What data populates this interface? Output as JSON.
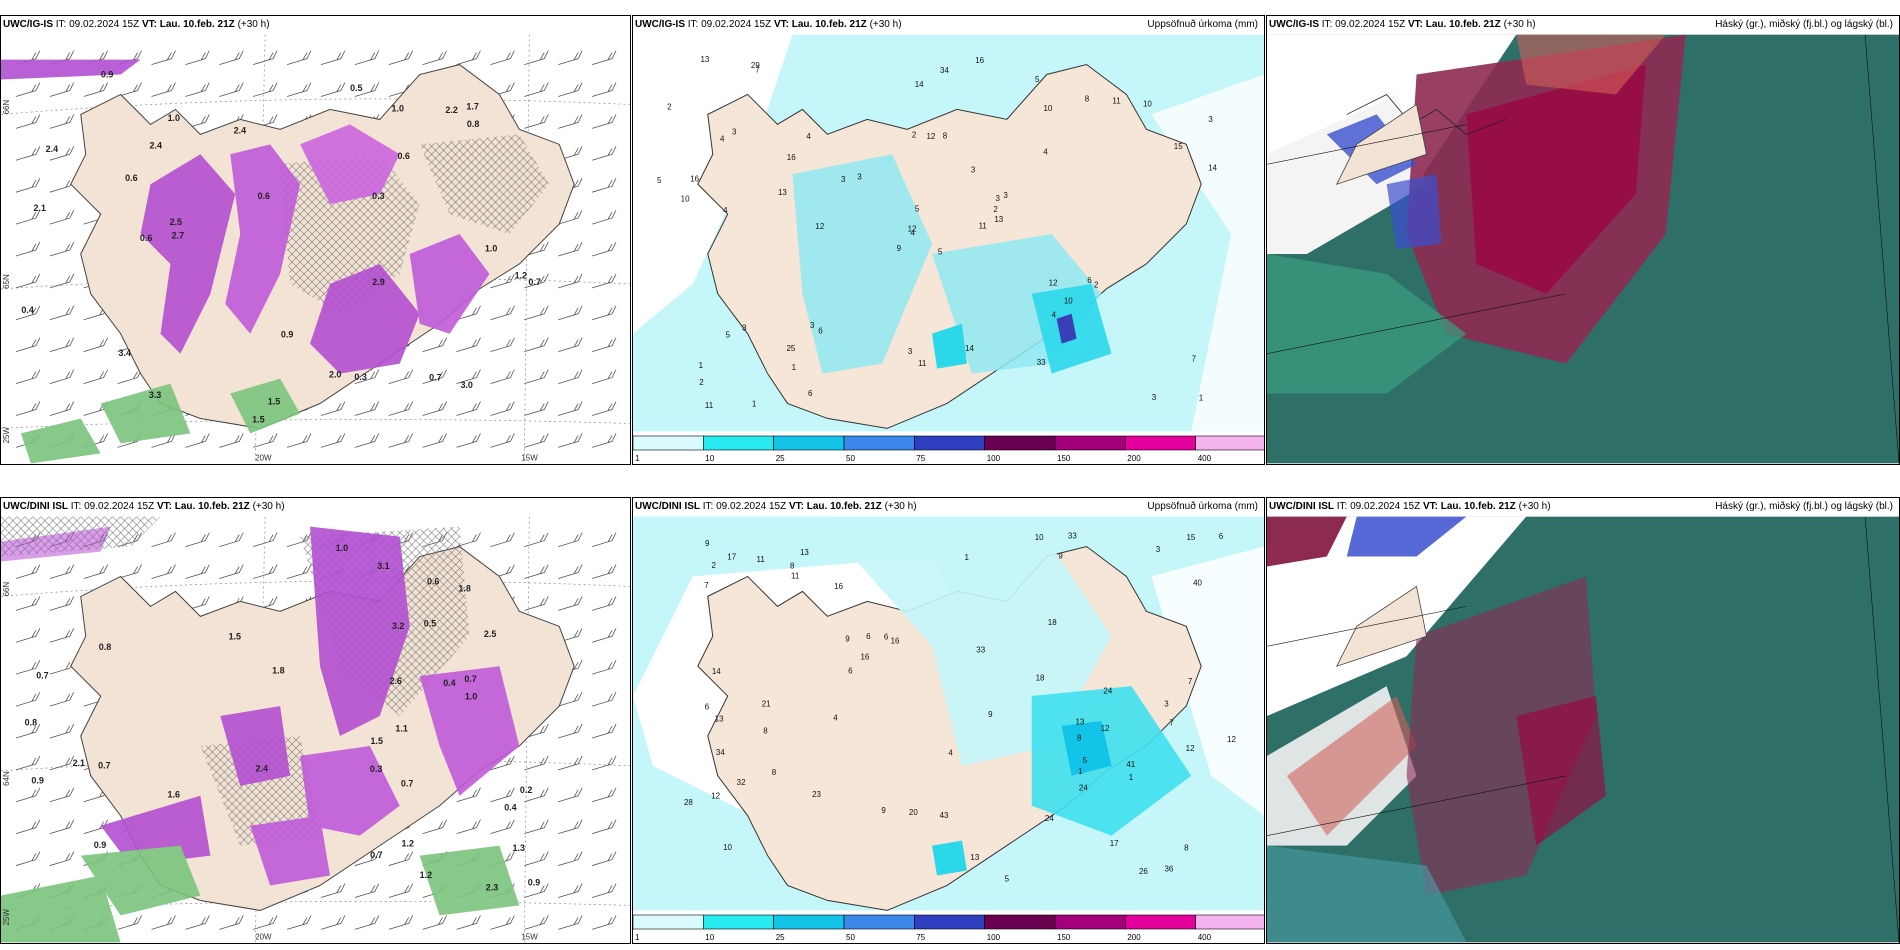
{
  "panels": {
    "top_left": {
      "model": "UWC/IG-IS",
      "it": "09.02.2024 15Z",
      "vt": "Lau. 10.feb. 21Z",
      "lead": "(+30 h)",
      "right_title": ""
    },
    "top_mid": {
      "model": "UWC/IG-IS",
      "it": "09.02.2024 15Z",
      "vt": "Lau. 10.feb. 21Z",
      "lead": "(+30 h)",
      "right_title": "Uppsöfnuð úrkoma (mm)"
    },
    "top_right": {
      "model": "UWC/IG-IS",
      "it": "09.02.2024 15Z",
      "vt": "Lau. 10.feb. 21Z",
      "lead": "(+30 h)",
      "right_title": "Háský (gr.), miðský (fj.bl.) og lágský (bl.)"
    },
    "bot_left": {
      "model": "UWC/DINI ISL",
      "it": "09.02.2024 15Z",
      "vt": "Lau. 10.feb. 21Z",
      "lead": "(+30 h)",
      "right_title": ""
    },
    "bot_mid": {
      "model": "UWC/DINI ISL",
      "it": "09.02.2024 15Z",
      "vt": "Lau. 10.feb. 21Z",
      "lead": "(+30 h)",
      "right_title": "Uppsöfnuð úrkoma (mm)"
    },
    "bot_right": {
      "model": "UWC/DINI ISL",
      "it": "09.02.2024 15Z",
      "vt": "Lau. 10.feb. 21Z",
      "lead": "(+30 h)",
      "right_title": "Háský (gr.), miðský (fj.bl.) og lágský (bl.)"
    }
  },
  "labels": {
    "it_prefix": "IT:",
    "vt_prefix": "VT:"
  },
  "colorbar": {
    "ticks": [
      "1",
      "10",
      "25",
      "50",
      "75",
      "100",
      "150",
      "200",
      "400"
    ],
    "colors": [
      "#d9fbfd",
      "#27eaf0",
      "#12c4e8",
      "#3a88ea",
      "#2d3fbf",
      "#6b0051",
      "#a5007b",
      "#e3009c",
      "#f4b3ef"
    ]
  },
  "axis_labels": {
    "lon_20": "20W",
    "lon_15": "15W",
    "lat_66": "66N",
    "lat_65": "65N",
    "lat_64": "64N",
    "lon_25": "25W"
  },
  "top_precip_numbers": [
    "5",
    "4",
    "4",
    "1",
    "3",
    "6",
    "5",
    "8",
    "10",
    "11",
    "7",
    "1",
    "4",
    "3",
    "9",
    "4",
    "1",
    "2",
    "3",
    "3",
    "3",
    "2",
    "1",
    "12",
    "3",
    "2",
    "3",
    "14",
    "10",
    "12",
    "14",
    "12",
    "3",
    "5",
    "4",
    "8",
    "3",
    "3",
    "7",
    "6",
    "16",
    "3",
    "13",
    "4",
    "6",
    "5",
    "2",
    "11",
    "11",
    "13",
    "5",
    "15",
    "2",
    "10",
    "33",
    "25",
    "29",
    "13",
    "14",
    "10",
    "34",
    "12",
    "16",
    "16",
    "11"
  ],
  "bot_precip_numbers": [
    "8",
    "7",
    "10",
    "13",
    "16",
    "17",
    "12",
    "9",
    "9",
    "5",
    "7",
    "6",
    "2",
    "8",
    "9",
    "7",
    "4",
    "9",
    "6",
    "8",
    "6",
    "3",
    "6",
    "12",
    "10",
    "8",
    "5",
    "13",
    "11",
    "24",
    "13",
    "24",
    "16",
    "4",
    "3",
    "1",
    "1",
    "21",
    "43",
    "32",
    "40",
    "33",
    "36",
    "20",
    "41",
    "23",
    "28",
    "17",
    "18",
    "14",
    "12",
    "6",
    "15",
    "13",
    "24",
    "26",
    "18",
    "9",
    "8",
    "11",
    "12",
    "16",
    "33",
    "34",
    "1"
  ],
  "top_left_values": [
    "2.4",
    "2.4",
    "0.3",
    "1.5",
    "2.2",
    "1.5",
    "2.9",
    "2.7",
    "1.7",
    "0.7",
    "1.2",
    "1.0",
    "0.6",
    "3.4",
    "2.1",
    "3.3",
    "2.5",
    "2.4",
    "3.0",
    "2.0",
    "0.7",
    "1.0",
    "0.6",
    "0.9",
    "1.0",
    "0.6",
    "0.8",
    "0.5",
    "0.9",
    "0.6",
    "0.4",
    "0.3"
  ],
  "bot_left_values": [
    "0.3",
    "0.2",
    "0.4",
    "0.4",
    "0.7",
    "0.5",
    "0.7",
    "1.8",
    "1.3",
    "1.2",
    "1.1",
    "1.5",
    "0.9",
    "0.7",
    "1.6",
    "2.3",
    "1.8",
    "2.1",
    "0.6",
    "1.5",
    "2.4",
    "0.8",
    "2.6",
    "3.1",
    "1.0",
    "0.9",
    "0.8",
    "3.2",
    "0.9",
    "0.7",
    "2.5",
    "1.0",
    "0.7",
    "1.2"
  ]
}
